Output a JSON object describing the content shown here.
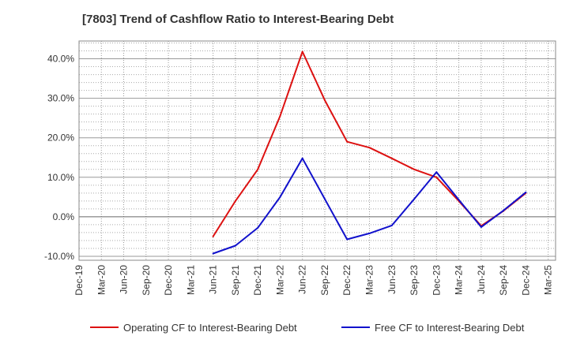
{
  "chart_data": {
    "type": "line",
    "title": "[7803]  Trend of Cashflow Ratio to Interest-Bearing Debt",
    "x_tick_labels": [
      "Dec-19",
      "Mar-20",
      "Jun-20",
      "Sep-20",
      "Dec-20",
      "Mar-21",
      "Jun-21",
      "Sep-21",
      "Dec-21",
      "Mar-22",
      "Jun-22",
      "Sep-22",
      "Dec-22",
      "Mar-23",
      "Jun-23",
      "Sep-23",
      "Dec-23",
      "Mar-24",
      "Jun-24",
      "Sep-24",
      "Dec-24",
      "Mar-25"
    ],
    "y_ticks": [
      -10,
      0,
      10,
      20,
      30,
      40
    ],
    "y_tick_labels": [
      "-10.0%",
      "0.0%",
      "10.0%",
      "20.0%",
      "30.0%",
      "40.0%"
    ],
    "ylim": [
      -11,
      44.5
    ],
    "grid": true,
    "legend_position": "bottom",
    "series": [
      {
        "name": "Operating CF to Interest-Bearing Debt",
        "color": "#dd1111",
        "x": [
          "Jun-21",
          "Sep-21",
          "Dec-21",
          "Mar-22",
          "Jun-22",
          "Sep-22",
          "Dec-22",
          "Mar-23",
          "Jun-23",
          "Sep-23",
          "Dec-23",
          "Mar-24",
          "Jun-24",
          "Sep-24",
          "Dec-24"
        ],
        "values": [
          -5.0,
          4.0,
          12.0,
          25.5,
          41.8,
          29.5,
          19.0,
          17.5,
          14.8,
          12.0,
          10.0,
          4.0,
          -2.3,
          1.5,
          6.0
        ]
      },
      {
        "name": "Free CF to Interest-Bearing Debt",
        "color": "#1111cc",
        "x": [
          "Jun-21",
          "Sep-21",
          "Dec-21",
          "Mar-22",
          "Jun-22",
          "Sep-22",
          "Dec-22",
          "Mar-23",
          "Jun-23",
          "Sep-23",
          "Dec-23",
          "Mar-24",
          "Jun-24",
          "Sep-24",
          "Dec-24"
        ],
        "values": [
          -9.3,
          -7.3,
          -2.8,
          5.0,
          14.8,
          4.5,
          -5.7,
          -4.2,
          -2.2,
          4.5,
          11.3,
          4.3,
          -2.6,
          1.6,
          6.2
        ]
      }
    ]
  }
}
